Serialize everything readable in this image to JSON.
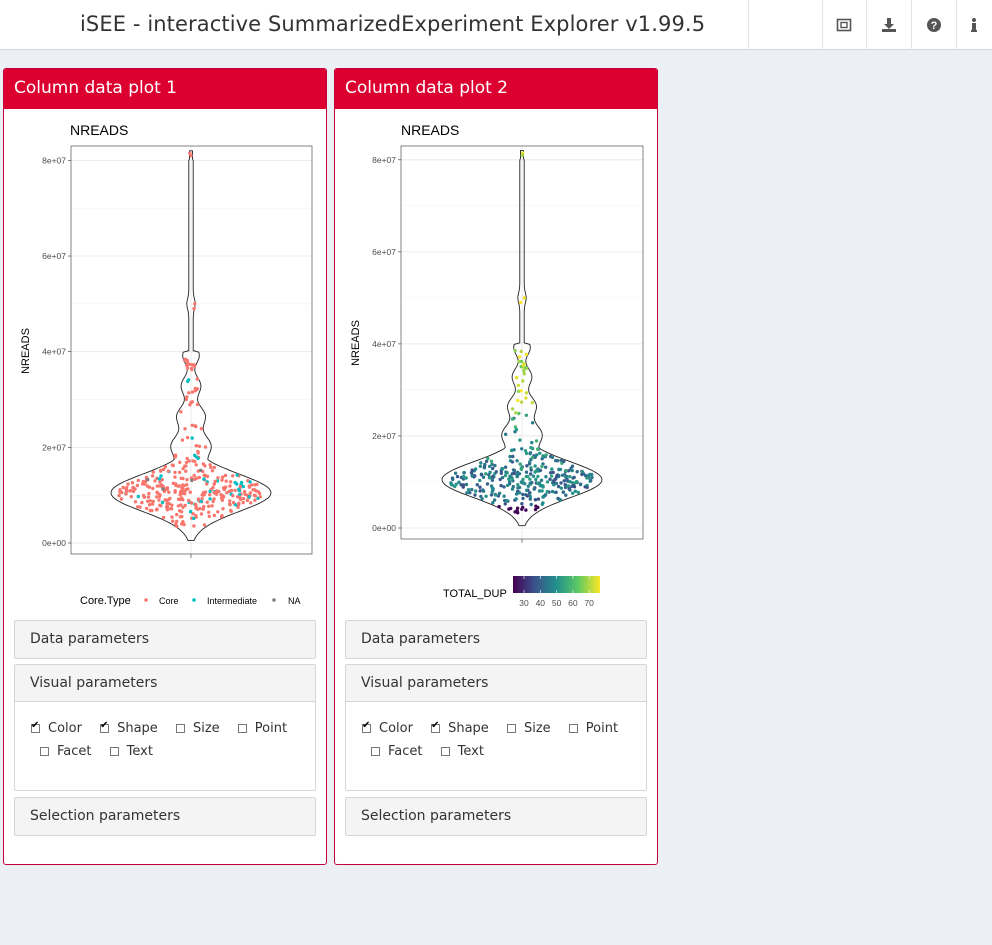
{
  "app": {
    "title": "iSEE - interactive SummarizedExperiment Explorer v1.99.5"
  },
  "toolbar": {
    "icons": [
      "screenshot-icon",
      "download-icon",
      "help-icon",
      "info-icon"
    ]
  },
  "panels": [
    {
      "title": "Column data plot 1",
      "legend": {
        "title": "Core.Type",
        "items": [
          "Core",
          "Intermediate",
          "NA"
        ],
        "colors": [
          "#f8766d",
          "#00bfc4",
          "#7f7f7f"
        ]
      },
      "sections": {
        "data": "Data parameters",
        "visual": "Visual parameters",
        "selection": "Selection parameters"
      },
      "checkboxes": {
        "color": "Color",
        "shape": "Shape",
        "size": "Size",
        "point": "Point",
        "facet": "Facet",
        "text": "Text"
      },
      "checked": {
        "color": true,
        "shape": true,
        "size": false,
        "point": false,
        "facet": false,
        "text": false
      }
    },
    {
      "title": "Column data plot 2",
      "legend": {
        "title": "TOTAL_DUP",
        "ticks": [
          "30",
          "40",
          "50",
          "60",
          "70"
        ],
        "colors": [
          "#440154",
          "#3b528b",
          "#21908c",
          "#5dc963",
          "#fde725"
        ]
      },
      "sections": {
        "data": "Data parameters",
        "visual": "Visual parameters",
        "selection": "Selection parameters"
      },
      "checkboxes": {
        "color": "Color",
        "shape": "Shape",
        "size": "Size",
        "point": "Point",
        "facet": "Facet",
        "text": "Text"
      },
      "checked": {
        "color": true,
        "shape": true,
        "size": false,
        "point": false,
        "facet": false,
        "text": false
      }
    }
  ],
  "chart_data": [
    {
      "type": "scatter",
      "title": "NREADS",
      "ylabel": "NREADS",
      "xlabel": "",
      "y_ticks": [
        "0e+00",
        "2e+07",
        "4e+07",
        "6e+07",
        "8e+07"
      ],
      "ylim": [
        0,
        83000000
      ],
      "grid": true,
      "legend_placement": "bottom",
      "color_by": "Core.Type"
    },
    {
      "type": "scatter",
      "title": "NREADS",
      "ylabel": "NREADS",
      "xlabel": "",
      "y_ticks": [
        "0e+00",
        "2e+07",
        "4e+07",
        "6e+07",
        "8e+07"
      ],
      "ylim": [
        0,
        83000000
      ],
      "grid": true,
      "legend_placement": "bottom",
      "color_by": "TOTAL_DUP"
    }
  ]
}
